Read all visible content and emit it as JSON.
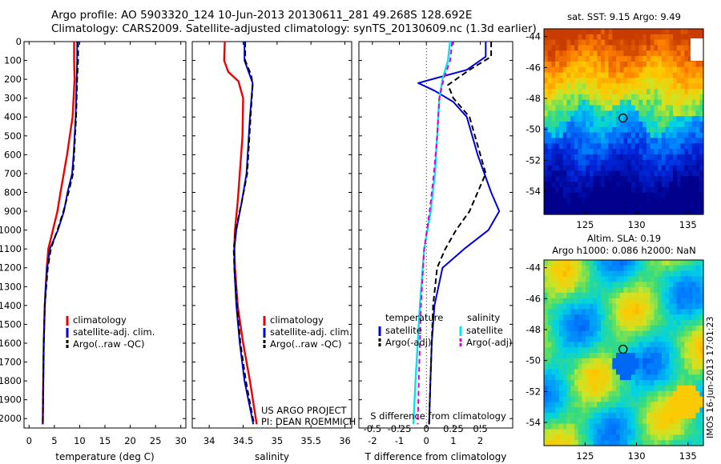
{
  "header": {
    "line1": "Argo profile: AO 5903320_124 10-Jun-2013 20130611_281 49.268S 128.692E",
    "line2": "Climatology: CARS2009. Satellite-adjusted climatology: synTS_20130609.nc (1.3d earlier)"
  },
  "side_label": "IMOS 16-Jun-2013 17:01:23",
  "colors": {
    "clim": "#ee0000",
    "sat": "#0000dd",
    "argo": "#000000",
    "cyan": "#00e5ee",
    "magenta": "#dd00dd"
  },
  "chart_data": [
    {
      "type": "line",
      "id": "temperature",
      "xlabel": "temperature (deg C)",
      "ylabel": "",
      "xlim": [
        -1,
        31
      ],
      "ylim": [
        2050,
        0
      ],
      "xticks": [
        "0",
        "5",
        "10",
        "15",
        "20",
        "25",
        "30"
      ],
      "yticks": [
        "0",
        "100",
        "200",
        "300",
        "400",
        "500",
        "600",
        "700",
        "800",
        "900",
        "1000",
        "1100",
        "1200",
        "1300",
        "1400",
        "1500",
        "1600",
        "1700",
        "1800",
        "1900",
        "2000"
      ],
      "legend": [
        "climatology",
        "satellite-adj. clim.",
        "Argo(..raw -QC)"
      ],
      "series": [
        {
          "name": "climatology",
          "style": "clim",
          "points": [
            [
              8.9,
              0
            ],
            [
              8.9,
              100
            ],
            [
              9.0,
              200
            ],
            [
              8.6,
              400
            ],
            [
              7.5,
              600
            ],
            [
              6.2,
              800
            ],
            [
              5.6,
              900
            ],
            [
              4.7,
              1000
            ],
            [
              3.8,
              1100
            ],
            [
              3.5,
              1200
            ],
            [
              3.3,
              1300
            ],
            [
              3.1,
              1400
            ],
            [
              2.9,
              1600
            ],
            [
              2.8,
              1800
            ],
            [
              2.7,
              2030
            ]
          ]
        },
        {
          "name": "satellite-adj. clim.",
          "style": "sat",
          "points": [
            [
              9.5,
              0
            ],
            [
              9.5,
              100
            ],
            [
              9.4,
              200
            ],
            [
              9.2,
              400
            ],
            [
              8.8,
              600
            ],
            [
              8.5,
              700
            ],
            [
              7.6,
              800
            ],
            [
              6.9,
              900
            ],
            [
              5.7,
              1000
            ],
            [
              4.1,
              1100
            ],
            [
              3.6,
              1200
            ],
            [
              3.3,
              1300
            ],
            [
              3.1,
              1400
            ],
            [
              2.9,
              1600
            ],
            [
              2.8,
              1800
            ],
            [
              2.7,
              2030
            ]
          ]
        },
        {
          "name": "Argo(..raw -QC)",
          "style": "argo",
          "points": [
            [
              9.7,
              0
            ],
            [
              9.7,
              100
            ],
            [
              9.5,
              200
            ],
            [
              9.3,
              400
            ],
            [
              8.9,
              600
            ],
            [
              8.7,
              700
            ],
            [
              7.8,
              800
            ],
            [
              6.8,
              900
            ],
            [
              5.6,
              1000
            ],
            [
              4.3,
              1100
            ],
            [
              3.7,
              1200
            ],
            [
              3.4,
              1300
            ],
            [
              3.1,
              1400
            ],
            [
              2.9,
              1600
            ],
            [
              2.8,
              1800
            ],
            [
              2.7,
              2030
            ]
          ]
        }
      ]
    },
    {
      "type": "line",
      "id": "salinity",
      "xlabel": "salinity",
      "xlim": [
        33.75,
        36.1
      ],
      "ylim": [
        2050,
        0
      ],
      "xticks": [
        "34",
        "34.5",
        "35",
        "35.5",
        "36"
      ],
      "legend": [
        "climatology",
        "satellite-adj. clim.",
        "Argo(..raw -QC)"
      ],
      "annotation": [
        "US ARGO PROJECT",
        "PI: DEAN ROEMMICH"
      ],
      "series": [
        {
          "name": "climatology",
          "style": "clim",
          "points": [
            [
              34.23,
              0
            ],
            [
              34.22,
              100
            ],
            [
              34.28,
              160
            ],
            [
              34.43,
              210
            ],
            [
              34.5,
              300
            ],
            [
              34.49,
              500
            ],
            [
              34.45,
              700
            ],
            [
              34.42,
              850
            ],
            [
              34.38,
              1000
            ],
            [
              34.37,
              1100
            ],
            [
              34.38,
              1200
            ],
            [
              34.42,
              1400
            ],
            [
              34.5,
              1600
            ],
            [
              34.6,
              1800
            ],
            [
              34.7,
              2030
            ]
          ]
        },
        {
          "name": "satellite-adj. clim.",
          "style": "sat",
          "points": [
            [
              34.52,
              0
            ],
            [
              34.52,
              100
            ],
            [
              34.6,
              180
            ],
            [
              34.64,
              220
            ],
            [
              34.6,
              400
            ],
            [
              34.55,
              700
            ],
            [
              34.48,
              850
            ],
            [
              34.4,
              1000
            ],
            [
              34.37,
              1100
            ],
            [
              34.37,
              1200
            ],
            [
              34.4,
              1400
            ],
            [
              34.45,
              1600
            ],
            [
              34.52,
              1800
            ],
            [
              34.65,
              2030
            ]
          ]
        },
        {
          "name": "Argo(..raw -QC)",
          "style": "argo",
          "points": [
            [
              34.53,
              0
            ],
            [
              34.53,
              100
            ],
            [
              34.62,
              180
            ],
            [
              34.64,
              230
            ],
            [
              34.61,
              400
            ],
            [
              34.56,
              700
            ],
            [
              34.48,
              850
            ],
            [
              34.39,
              1000
            ],
            [
              34.36,
              1100
            ],
            [
              34.37,
              1200
            ],
            [
              34.41,
              1400
            ],
            [
              34.46,
              1600
            ],
            [
              34.54,
              1800
            ],
            [
              34.66,
              2030
            ]
          ]
        }
      ]
    },
    {
      "type": "line",
      "id": "difference",
      "xlabel": "T difference from climatology",
      "xlabel_top": "S difference from climatology",
      "xlim": [
        -2.5,
        3.2
      ],
      "ylim": [
        2050,
        0
      ],
      "xticks": [
        "-2",
        "-1",
        "0",
        "1",
        "2"
      ],
      "xticks_s": [
        "-0.5",
        "-0.25",
        "0",
        "0.25",
        "0.5"
      ],
      "legend_temp_title": "temperature",
      "legend_sal_title": "salinity",
      "legend_temp": [
        "satellite",
        "Argo(-adj)"
      ],
      "legend_sal": [
        "satellite",
        "Argo(-adj)"
      ],
      "series": [
        {
          "name": "T satellite",
          "style": "sat",
          "points": [
            [
              2.2,
              0
            ],
            [
              2.2,
              80
            ],
            [
              1.5,
              150
            ],
            [
              0.2,
              200
            ],
            [
              -0.3,
              220
            ],
            [
              0.3,
              260
            ],
            [
              1.0,
              320
            ],
            [
              1.5,
              400
            ],
            [
              1.9,
              600
            ],
            [
              2.4,
              800
            ],
            [
              2.7,
              900
            ],
            [
              2.3,
              1000
            ],
            [
              1.4,
              1100
            ],
            [
              0.6,
              1200
            ],
            [
              0.3,
              1400
            ],
            [
              0.2,
              1600
            ],
            [
              0.15,
              1800
            ],
            [
              0.1,
              2030
            ]
          ]
        },
        {
          "name": "T Argo(-adj)",
          "style": "argo",
          "points": [
            [
              2.4,
              0
            ],
            [
              2.4,
              80
            ],
            [
              1.6,
              150
            ],
            [
              0.8,
              230
            ],
            [
              1.0,
              300
            ],
            [
              1.6,
              400
            ],
            [
              2.0,
              600
            ],
            [
              2.2,
              700
            ],
            [
              1.9,
              800
            ],
            [
              1.6,
              900
            ],
            [
              1.1,
              1000
            ],
            [
              0.7,
              1100
            ],
            [
              0.4,
              1200
            ],
            [
              0.25,
              1400
            ],
            [
              0.2,
              1600
            ],
            [
              0.15,
              1800
            ],
            [
              0.1,
              2030
            ]
          ]
        },
        {
          "name": "S satellite",
          "style": "cyan",
          "points": [
            [
              0.22,
              0
            ],
            [
              0.2,
              100
            ],
            [
              0.15,
              200
            ],
            [
              0.12,
              300
            ],
            [
              0.1,
              500
            ],
            [
              0.08,
              700
            ],
            [
              0.04,
              900
            ],
            [
              -0.02,
              1100
            ],
            [
              -0.06,
              1400
            ],
            [
              -0.1,
              1800
            ],
            [
              -0.12,
              2030
            ]
          ]
        },
        {
          "name": "S Argo(-adj)",
          "style": "magenta",
          "points": [
            [
              0.24,
              0
            ],
            [
              0.22,
              100
            ],
            [
              0.16,
              200
            ],
            [
              0.12,
              300
            ],
            [
              0.1,
              500
            ],
            [
              0.07,
              700
            ],
            [
              0.03,
              900
            ],
            [
              -0.02,
              1100
            ],
            [
              -0.05,
              1400
            ],
            [
              -0.07,
              1800
            ],
            [
              -0.08,
              2030
            ]
          ]
        }
      ]
    },
    {
      "type": "heatmap",
      "id": "sst_map",
      "title": "sat. SST: 9.15  Argo: 9.49",
      "xlim": [
        121,
        136.5
      ],
      "ylim": [
        -55.5,
        -43.5
      ],
      "xticks": [
        "125",
        "130",
        "135"
      ],
      "yticks": [
        "-44",
        "-46",
        "-48",
        "-50",
        "-52",
        "-54"
      ],
      "marker": [
        128.692,
        -49.268
      ]
    },
    {
      "type": "heatmap",
      "id": "sla_map",
      "title": "Altim. SLA: 0.19",
      "subtitle": "Argo h1000: 0.086  h2000: NaN",
      "xlim": [
        121,
        136.5
      ],
      "ylim": [
        -55.5,
        -43.5
      ],
      "xticks": [
        "125",
        "130",
        "135"
      ],
      "yticks": [
        "-44",
        "-46",
        "-48",
        "-50",
        "-52",
        "-54"
      ],
      "marker": [
        128.692,
        -49.268
      ]
    }
  ]
}
